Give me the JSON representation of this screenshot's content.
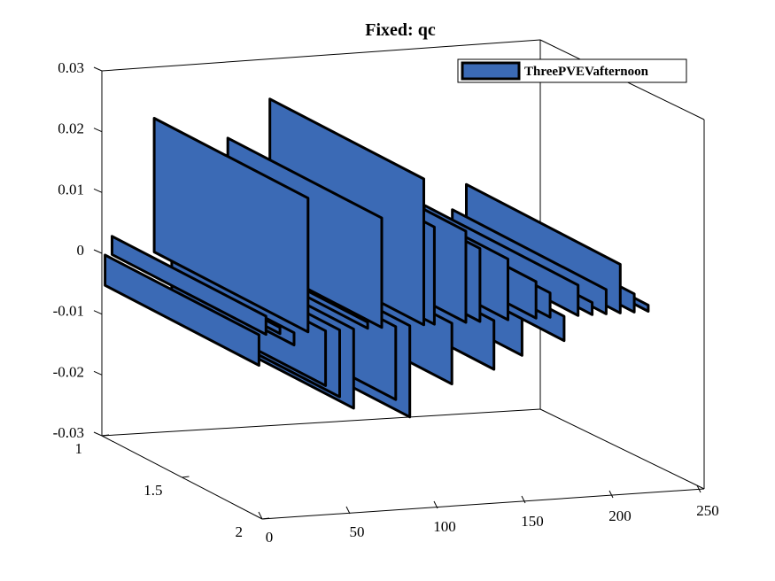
{
  "chart_data": {
    "type": "3d-bar",
    "title": "Fixed: qc",
    "xlabel": "",
    "ylabel": "",
    "zlabel": "",
    "x_ticks": [
      "0",
      "50",
      "100",
      "150",
      "200",
      "250"
    ],
    "y_ticks": [
      "1",
      "1.5",
      "2"
    ],
    "z_ticks": [
      "0.03",
      "0.02",
      "0.01",
      "0",
      "-0.01",
      "-0.02",
      "-0.03"
    ],
    "xlim": [
      0,
      250
    ],
    "ylim": [
      1,
      2
    ],
    "zlim": [
      -0.03,
      0.03
    ],
    "legend": {
      "label": "ThreePVEVafternoon",
      "placement": "top-right"
    },
    "colors": {
      "fill": "#3B6AB5",
      "edge": "#000000"
    },
    "series": [
      {
        "name": "ThreePVEVafternoon",
        "y": 1,
        "points": [
          {
            "x": 0,
            "z": -0.005
          },
          {
            "x": 4,
            "z": 0.003
          },
          {
            "x": 12,
            "z": 0.001
          },
          {
            "x": 20,
            "z": -0.002
          },
          {
            "x": 28,
            "z": 0.022
          },
          {
            "x": 38,
            "z": -0.009
          },
          {
            "x": 46,
            "z": -0.011
          },
          {
            "x": 54,
            "z": -0.013
          },
          {
            "x": 62,
            "z": 0.001
          },
          {
            "x": 70,
            "z": 0.018
          },
          {
            "x": 78,
            "z": -0.012
          },
          {
            "x": 86,
            "z": -0.015
          },
          {
            "x": 94,
            "z": 0.024
          },
          {
            "x": 100,
            "z": 0.016
          },
          {
            "x": 110,
            "z": -0.01
          },
          {
            "x": 118,
            "z": 0.015
          },
          {
            "x": 126,
            "z": 0.012
          },
          {
            "x": 134,
            "z": -0.008
          },
          {
            "x": 142,
            "z": 0.01
          },
          {
            "x": 150,
            "z": -0.006
          },
          {
            "x": 158,
            "z": 0.006
          },
          {
            "x": 166,
            "z": 0.004
          },
          {
            "x": 174,
            "z": -0.004
          },
          {
            "x": 182,
            "z": 0.005
          },
          {
            "x": 190,
            "z": 0.002
          },
          {
            "x": 198,
            "z": 0.004
          },
          {
            "x": 206,
            "z": 0.008
          },
          {
            "x": 214,
            "z": 0.003
          },
          {
            "x": 222,
            "z": 0.001
          }
        ]
      }
    ]
  }
}
